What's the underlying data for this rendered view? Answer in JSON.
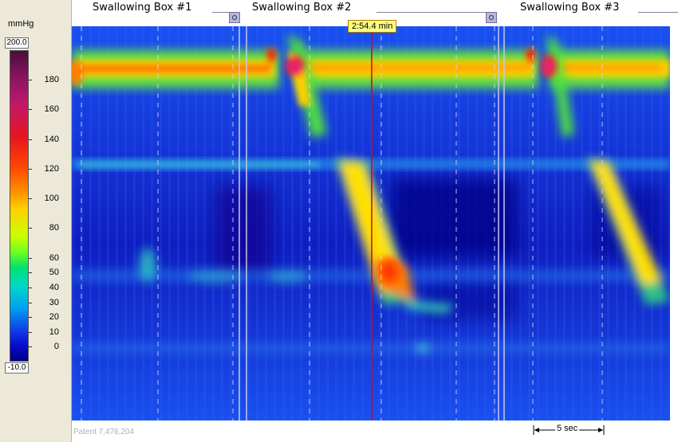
{
  "colorbar": {
    "unit": "mmHg",
    "max_value": "200.0",
    "min_value": "-10.0",
    "labels": [
      "180",
      "160",
      "140",
      "120",
      "100",
      "80",
      "60",
      "50",
      "40",
      "30",
      "20",
      "10",
      "0"
    ],
    "label_values": [
      180,
      160,
      140,
      120,
      100,
      80,
      60,
      50,
      40,
      30,
      20,
      10,
      0
    ]
  },
  "swallowing_boxes": [
    {
      "title": "Swallowing Box #1"
    },
    {
      "title": "Swallowing Box #2"
    },
    {
      "title": "Swallowing Box #3"
    }
  ],
  "time_cursor": {
    "label": "2:54.4 min",
    "color": "#e00000"
  },
  "time_scale_bar": {
    "label": "5 sec"
  },
  "footer": {
    "patent": "Patent 7,476,204"
  },
  "colors": {
    "background_low": "#1a3cf0",
    "panel": "#ece9d8",
    "cursor": "#e00000"
  }
}
